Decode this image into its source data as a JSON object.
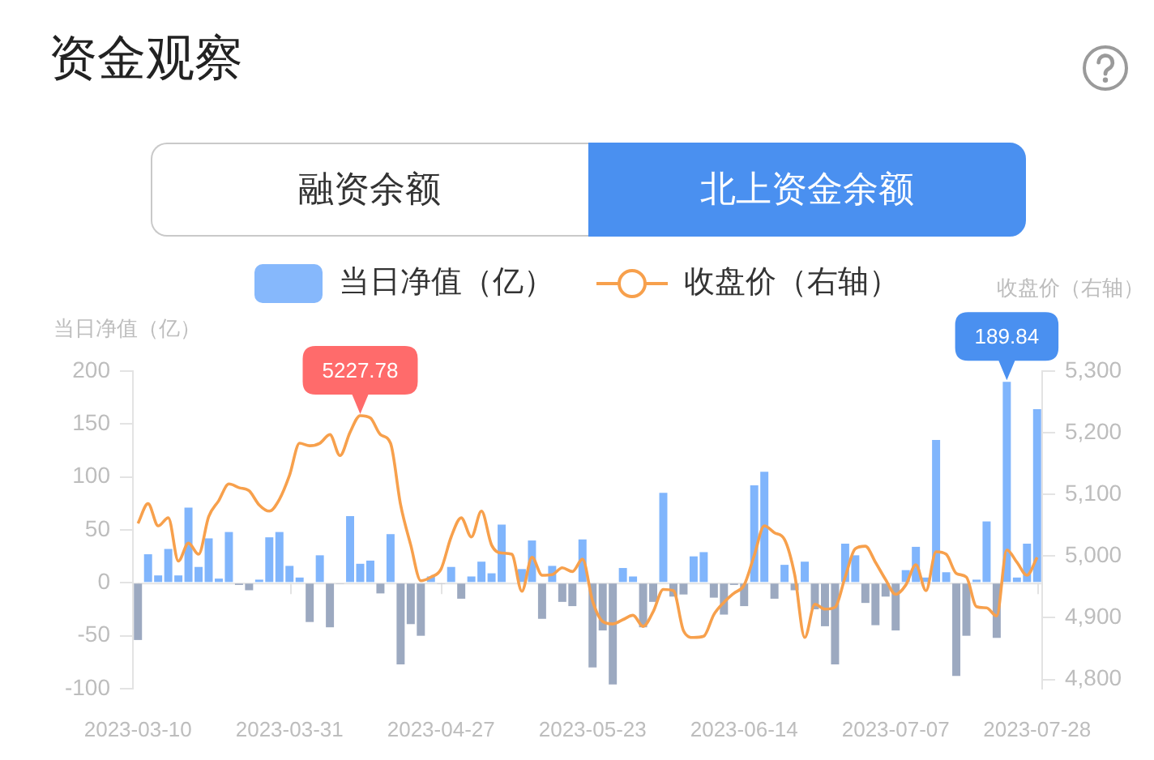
{
  "chart_data": {
    "type": "bar",
    "title": "资金观察",
    "annotations": [
      "融资余额",
      "北上资金余额"
    ],
    "ylabel": "当日净值（亿）",
    "y2label": "收盘价（右轴）",
    "legend": "top",
    "categories": [
      "2023-03-10",
      null,
      null,
      null,
      null,
      null,
      null,
      null,
      null,
      null,
      null,
      null,
      null,
      null,
      null,
      "2023-03-31",
      null,
      null,
      null,
      null,
      null,
      null,
      null,
      null,
      null,
      null,
      null,
      null,
      null,
      null,
      "2023-04-27",
      null,
      null,
      null,
      null,
      null,
      null,
      null,
      null,
      null,
      null,
      null,
      null,
      null,
      null,
      "2023-05-23",
      null,
      null,
      null,
      null,
      null,
      null,
      null,
      null,
      null,
      null,
      null,
      null,
      null,
      null,
      "2023-06-14",
      null,
      null,
      null,
      null,
      null,
      null,
      null,
      null,
      null,
      null,
      null,
      null,
      null,
      null,
      "2023-07-07",
      null,
      null,
      null,
      null,
      null,
      null,
      null,
      null,
      null,
      null,
      null,
      null,
      null,
      "2023-07-28"
    ],
    "series": [
      {
        "name": "当日净值（亿）",
        "color": "#86b8fc",
        "colors": [
          "#9ca9c0",
          "#80b5fc",
          "#80b5fc",
          "#80b5fc",
          "#80b5fc",
          "#80b5fc",
          "#80b5fc",
          "#80b5fc",
          "#80b5fc",
          "#80b5fc",
          "#9ca9c0",
          "#9ca9c0",
          "#80b5fc",
          "#80b5fc",
          "#80b5fc",
          "#80b5fc",
          "#80b5fc",
          "#9ca9c0",
          "#80b5fc",
          "#9ca9c0",
          "#9ca9c0",
          "#80b5fc",
          "#80b5fc",
          "#80b5fc",
          "#9ca9c0",
          "#80b5fc",
          "#9ca9c0",
          "#9ca9c0",
          "#9ca9c0",
          "#80b5fc",
          "#9ca9c0",
          "#80b5fc",
          "#9ca9c0",
          "#80b5fc",
          "#80b5fc",
          "#80b5fc",
          "#80b5fc",
          "#80b5fc",
          "#80b5fc",
          "#80b5fc",
          "#9ca9c0",
          "#80b5fc",
          "#9ca9c0",
          "#9ca9c0",
          "#80b5fc",
          "#9ca9c0",
          "#9ca9c0",
          "#9ca9c0",
          "#80b5fc",
          "#80b5fc",
          "#9ca9c0",
          "#9ca9c0",
          "#80b5fc",
          "#9ca9c0",
          "#9ca9c0",
          "#80b5fc",
          "#80b5fc",
          "#9ca9c0",
          "#9ca9c0",
          "#9ca9c0",
          "#9ca9c0",
          "#80b5fc",
          "#80b5fc",
          "#9ca9c0",
          "#80b5fc",
          "#9ca9c0",
          "#80b5fc",
          "#9ca9c0",
          "#9ca9c0",
          "#9ca9c0",
          "#80b5fc",
          "#80b5fc",
          "#9ca9c0",
          "#9ca9c0",
          "#9ca9c0",
          "#9ca9c0",
          "#80b5fc",
          "#80b5fc",
          "#80b5fc",
          "#80b5fc",
          "#80b5fc",
          "#9ca9c0",
          "#9ca9c0",
          "#80b5fc",
          "#80b5fc",
          "#9ca9c0",
          "#80b5fc",
          "#80b5fc",
          "#80b5fc",
          "#80b5fc"
        ],
        "values": [
          -54,
          27,
          7,
          32,
          7,
          71,
          15,
          42,
          4,
          48,
          -2,
          -7,
          3,
          43,
          48,
          16,
          5,
          -37,
          26,
          -42,
          -1,
          63,
          18,
          21,
          -10,
          46,
          -77,
          -39,
          -50,
          6,
          -1,
          15,
          -15,
          6,
          20,
          9,
          55,
          null,
          13,
          40,
          -34,
          16,
          -18,
          -22,
          41,
          -80,
          -45,
          -96,
          14,
          6,
          -42,
          -18,
          85,
          -13,
          -11,
          25,
          29,
          -14,
          -30,
          -2,
          -22,
          92,
          105,
          -15,
          17,
          -7,
          20,
          -25,
          -41,
          -77,
          37,
          26,
          -19,
          -40,
          -13,
          -45,
          12,
          34,
          5,
          135,
          10,
          -88,
          -50,
          3,
          58,
          -52,
          189.84,
          5,
          37,
          164
        ],
        "value_labels": [
          null,
          null,
          null,
          null,
          null,
          null,
          null,
          null,
          null,
          null,
          null,
          null,
          null,
          null,
          null,
          null,
          null,
          null,
          null,
          null,
          null,
          null,
          null,
          null,
          null,
          null,
          null,
          null,
          null,
          null,
          null,
          null,
          null,
          null,
          null,
          null,
          null,
          null,
          null,
          null,
          null,
          null,
          null,
          null,
          null,
          null,
          null,
          null,
          null,
          null,
          null,
          null,
          null,
          null,
          null,
          null,
          null,
          null,
          null,
          null,
          null,
          null,
          null,
          null,
          null,
          null,
          null,
          null,
          null,
          null,
          null,
          null,
          null,
          null,
          null,
          null,
          null,
          null,
          null,
          null,
          null,
          null,
          null,
          null,
          null,
          null,
          "189.84",
          null,
          null,
          null
        ]
      },
      {
        "name": "收盘价（右轴）",
        "type": "line",
        "axis": "y2",
        "color": "#f7a04c",
        "values": [
          5053,
          5085,
          5049,
          5062,
          4992,
          5021,
          5003,
          5064,
          5090,
          5117,
          5111,
          5106,
          5083,
          5073,
          5092,
          5131,
          5183,
          5179,
          5183,
          5197,
          5163,
          5201,
          5227.78,
          5224,
          5197,
          5183,
          5083,
          5018,
          4960,
          4966,
          4979,
          5031,
          5062,
          5031,
          5073,
          5018,
          5005,
          5003,
          4943,
          4998,
          4969,
          4970,
          4981,
          4975,
          4995,
          4927,
          4894,
          4890,
          4897,
          4904,
          4886,
          4910,
          4946,
          4944,
          4879,
          4868,
          4870,
          4905,
          4925,
          4940,
          4953,
          5001,
          5049,
          5038,
          5027,
          4970,
          4868,
          4922,
          4914,
          4917,
          4966,
          5012,
          5016,
          4990,
          4962,
          4938,
          4953,
          4986,
          4944,
          5007,
          5003,
          4972,
          4966,
          4918,
          4916,
          4903,
          5010,
          4990,
          4969,
          4998
        ],
        "value_labels": [
          null,
          null,
          null,
          null,
          null,
          null,
          null,
          null,
          null,
          null,
          null,
          null,
          null,
          null,
          null,
          null,
          null,
          null,
          null,
          null,
          null,
          null,
          "5227.78",
          null,
          null,
          null,
          null,
          null,
          null,
          null,
          null,
          null,
          null,
          null,
          null,
          null,
          null,
          null,
          null,
          null,
          null,
          null,
          null,
          null,
          null,
          null,
          null,
          null,
          null,
          null,
          null,
          null,
          null,
          null,
          null,
          null,
          null,
          null,
          null,
          null,
          null,
          null,
          null,
          null,
          null,
          null,
          null,
          null,
          null,
          null,
          null,
          null,
          null,
          null,
          null,
          null,
          null,
          null,
          null,
          null,
          null,
          null,
          null,
          null,
          null,
          null,
          null,
          null,
          null,
          null
        ]
      }
    ],
    "ylim": [
      -100,
      200
    ],
    "yticks": [
      200,
      150,
      100,
      50,
      0,
      -50,
      -100
    ],
    "y2lim": [
      4785,
      5300
    ],
    "y2ticks": [
      {
        "value": 5300,
        "label": "5,300"
      },
      {
        "value": 5200,
        "label": "5,200"
      },
      {
        "value": 5100,
        "label": "5,100"
      },
      {
        "value": 5000,
        "label": "5,000"
      },
      {
        "value": 4900,
        "label": "4,900"
      },
      {
        "value": 4800,
        "label": "4,800"
      }
    ]
  }
}
